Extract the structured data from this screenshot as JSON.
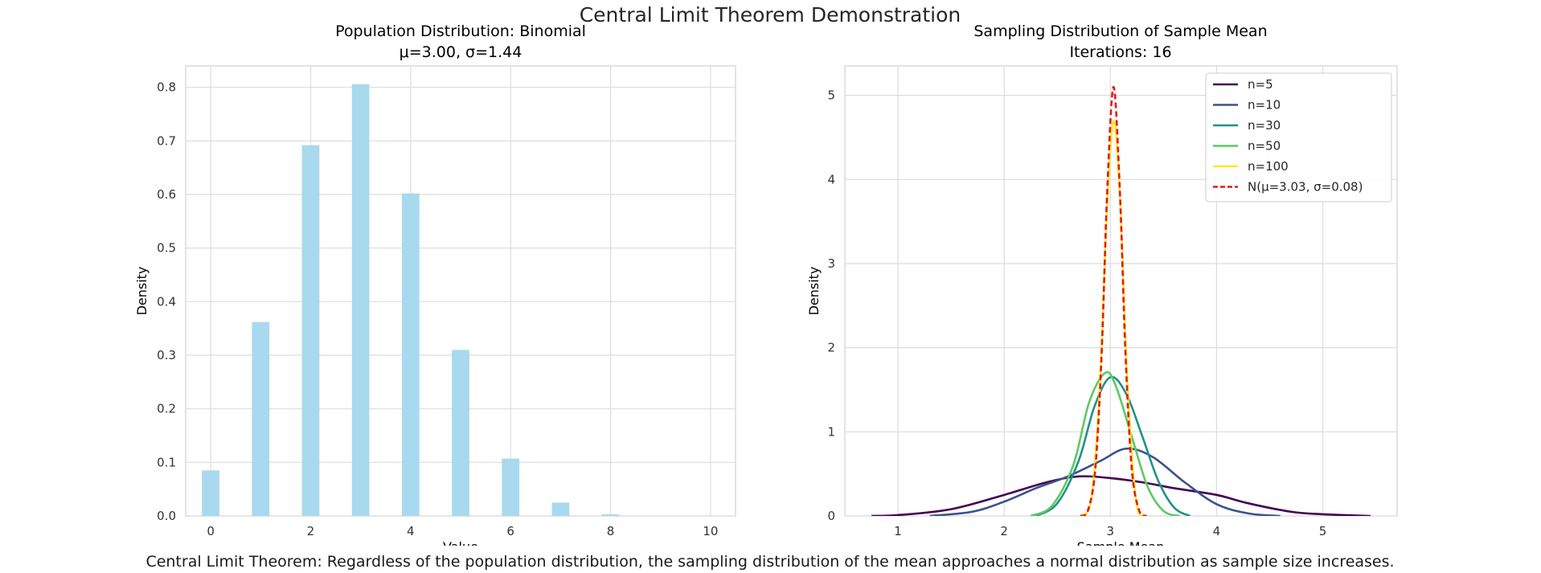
{
  "figure": {
    "suptitle": "Central Limit Theorem Demonstration",
    "caption": "Central Limit Theorem: Regardless of the population distribution, the sampling distribution of the mean approaches a normal distribution as sample size increases."
  },
  "chart_data": [
    {
      "type": "bar",
      "title": "Population Distribution: Binomial",
      "subtitle": "μ=3.00, σ=1.44",
      "xlabel": "Value",
      "ylabel": "Density",
      "xlim": [
        -0.5,
        10.5
      ],
      "ylim": [
        0,
        0.84
      ],
      "xticks": [
        0,
        2,
        4,
        6,
        8,
        10
      ],
      "yticks": [
        0.0,
        0.1,
        0.2,
        0.3,
        0.4,
        0.5,
        0.6,
        0.7,
        0.8
      ],
      "bar_color": "#a9d9ef",
      "bars": [
        {
          "x": 0,
          "value": 0.085
        },
        {
          "x": 1,
          "value": 0.362
        },
        {
          "x": 2,
          "value": 0.692
        },
        {
          "x": 3,
          "value": 0.806
        },
        {
          "x": 4,
          "value": 0.602
        },
        {
          "x": 5,
          "value": 0.31
        },
        {
          "x": 6,
          "value": 0.107
        },
        {
          "x": 7,
          "value": 0.025
        },
        {
          "x": 8,
          "value": 0.003
        },
        {
          "x": 9,
          "value": 0.0
        },
        {
          "x": 10,
          "value": 0.0
        }
      ],
      "grid": true
    },
    {
      "type": "line",
      "title": "Sampling Distribution of Sample Mean",
      "subtitle": "Iterations: 16",
      "xlabel": "Sample Mean",
      "ylabel": "Density",
      "xlim": [
        0.5,
        5.7
      ],
      "ylim": [
        0,
        5.35
      ],
      "xticks": [
        1,
        2,
        3,
        4,
        5
      ],
      "yticks": [
        0,
        1,
        2,
        3,
        4,
        5
      ],
      "legend_position": "top-right",
      "grid": true,
      "series": [
        {
          "name": "n=5",
          "color": "#440154",
          "dash": false,
          "x": [
            0.75,
            1.0,
            1.5,
            2.0,
            2.4,
            2.7,
            3.0,
            3.3,
            3.6,
            4.0,
            4.3,
            4.7,
            5.0,
            5.45
          ],
          "y": [
            0.0,
            0.01,
            0.08,
            0.25,
            0.4,
            0.47,
            0.45,
            0.4,
            0.33,
            0.25,
            0.15,
            0.05,
            0.02,
            0.0
          ]
        },
        {
          "name": "n=10",
          "color": "#3b528b",
          "dash": false,
          "x": [
            1.3,
            1.7,
            2.0,
            2.3,
            2.6,
            2.9,
            3.15,
            3.4,
            3.7,
            4.0,
            4.3,
            4.6
          ],
          "y": [
            0.0,
            0.05,
            0.17,
            0.33,
            0.47,
            0.65,
            0.8,
            0.7,
            0.4,
            0.14,
            0.03,
            0.0
          ]
        },
        {
          "name": "n=30",
          "color": "#21918c",
          "dash": false,
          "x": [
            2.3,
            2.5,
            2.7,
            2.85,
            3.0,
            3.15,
            3.3,
            3.45,
            3.6,
            3.75
          ],
          "y": [
            0.0,
            0.15,
            0.65,
            1.3,
            1.65,
            1.45,
            0.95,
            0.42,
            0.1,
            0.0
          ]
        },
        {
          "name": "n=50",
          "color": "#5ec962",
          "dash": false,
          "x": [
            2.25,
            2.45,
            2.65,
            2.8,
            2.95,
            3.05,
            3.2,
            3.35,
            3.5,
            3.65
          ],
          "y": [
            0.0,
            0.12,
            0.6,
            1.35,
            1.7,
            1.55,
            0.95,
            0.35,
            0.06,
            0.0
          ]
        },
        {
          "name": "n=100",
          "color": "#fde725",
          "dash": false,
          "x": [
            2.72,
            2.82,
            2.9,
            2.97,
            3.03,
            3.09,
            3.16,
            3.24,
            3.32
          ],
          "y": [
            0.0,
            0.2,
            1.5,
            3.7,
            4.7,
            3.8,
            1.6,
            0.2,
            0.0
          ]
        },
        {
          "name": "N(μ=3.03, σ=0.08)",
          "color": "#e31a1c",
          "dash": true,
          "x": [
            2.72,
            2.79,
            2.86,
            2.92,
            2.97,
            3.03,
            3.09,
            3.14,
            3.2,
            3.27,
            3.34
          ],
          "y": [
            0.0,
            0.07,
            0.58,
            2.0,
            3.85,
            5.1,
            3.85,
            2.0,
            0.58,
            0.07,
            0.0
          ]
        }
      ]
    }
  ]
}
